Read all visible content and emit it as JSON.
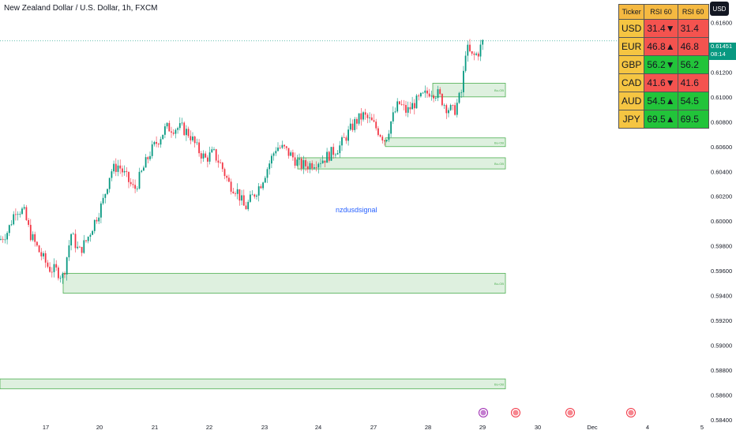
{
  "header": {
    "title": "New Zealand Dollar / U.S. Dollar, 1h, FXCM",
    "currency_button": "USD",
    "watermark": "nzdusdsignal"
  },
  "price_tag": {
    "price": "0.61451",
    "countdown": "08:14"
  },
  "colors": {
    "up": "#089981",
    "down": "#f23645",
    "zone_fill": "#c8e6c9",
    "zone_stroke": "#4caf50"
  },
  "rsi_table": {
    "headers": [
      "Ticker",
      "RSI 60",
      "RSI 60"
    ],
    "rows": [
      {
        "ticker": "USD",
        "rsi": "31.4▼",
        "value": "31.4",
        "status": "red"
      },
      {
        "ticker": "EUR",
        "rsi": "46.8▲",
        "value": "46.8",
        "status": "red"
      },
      {
        "ticker": "GBP",
        "rsi": "56.2▼",
        "value": "56.2",
        "status": "green"
      },
      {
        "ticker": "CAD",
        "rsi": "41.6▼",
        "value": "41.6",
        "status": "red"
      },
      {
        "ticker": "AUD",
        "rsi": "54.5▲",
        "value": "54.5",
        "status": "green"
      },
      {
        "ticker": "JPY",
        "rsi": "69.5▲",
        "value": "69.5",
        "status": "green"
      }
    ]
  },
  "chart_data": {
    "type": "candlestick",
    "x_ticks": [
      "17",
      "20",
      "21",
      "22",
      "23",
      "24",
      "27",
      "28",
      "29",
      "30",
      "Dec",
      "4",
      "5"
    ],
    "y_ticks": [
      "0.61600",
      "0.61200",
      "0.61000",
      "0.60800",
      "0.60600",
      "0.60400",
      "0.60200",
      "0.60000",
      "0.59800",
      "0.59600",
      "0.59400",
      "0.59200",
      "0.59000",
      "0.58800",
      "0.58600",
      "0.58400"
    ],
    "ylim": [
      0.5835,
      0.6178
    ],
    "last_price": 0.61451,
    "zones": [
      {
        "label": "Bu-OB",
        "low": 0.61,
        "high": 0.6111,
        "from_x": 548
      },
      {
        "label": "Bu-OB",
        "low": 0.606,
        "high": 0.6067,
        "from_x": 488
      },
      {
        "label": "Bu-OB",
        "low": 0.6042,
        "high": 0.6051,
        "from_x": 377
      },
      {
        "label": "Bu-OB",
        "low": 0.5942,
        "high": 0.5958,
        "from_x": 80
      },
      {
        "label": "Bu-OB",
        "low": 0.5865,
        "high": 0.5873,
        "from_x": 0
      }
    ],
    "path_anchors": [
      [
        0,
        0.5985
      ],
      [
        10,
        0.5992
      ],
      [
        20,
        0.601
      ],
      [
        30,
        0.6008
      ],
      [
        38,
        0.599
      ],
      [
        50,
        0.5975
      ],
      [
        62,
        0.5962
      ],
      [
        72,
        0.596
      ],
      [
        80,
        0.5955
      ],
      [
        90,
        0.599
      ],
      [
        100,
        0.5975
      ],
      [
        110,
        0.5985
      ],
      [
        120,
        0.6
      ],
      [
        130,
        0.6015
      ],
      [
        140,
        0.604
      ],
      [
        150,
        0.6045
      ],
      [
        160,
        0.6035
      ],
      [
        170,
        0.6025
      ],
      [
        180,
        0.604
      ],
      [
        190,
        0.6055
      ],
      [
        200,
        0.6065
      ],
      [
        210,
        0.6075
      ],
      [
        220,
        0.6075
      ],
      [
        230,
        0.6075
      ],
      [
        240,
        0.607
      ],
      [
        250,
        0.6058
      ],
      [
        260,
        0.605
      ],
      [
        270,
        0.6055
      ],
      [
        280,
        0.6045
      ],
      [
        290,
        0.603
      ],
      [
        300,
        0.6025
      ],
      [
        310,
        0.601
      ],
      [
        320,
        0.602
      ],
      [
        330,
        0.603
      ],
      [
        340,
        0.6045
      ],
      [
        350,
        0.606
      ],
      [
        360,
        0.6058
      ],
      [
        370,
        0.6052
      ],
      [
        380,
        0.6045
      ],
      [
        390,
        0.6045
      ],
      [
        400,
        0.6048
      ],
      [
        410,
        0.605
      ],
      [
        420,
        0.6055
      ],
      [
        430,
        0.606
      ],
      [
        440,
        0.607
      ],
      [
        450,
        0.608
      ],
      [
        460,
        0.6085
      ],
      [
        470,
        0.608
      ],
      [
        480,
        0.6072
      ],
      [
        488,
        0.6065
      ],
      [
        495,
        0.608
      ],
      [
        505,
        0.6095
      ],
      [
        515,
        0.6088
      ],
      [
        525,
        0.6095
      ],
      [
        535,
        0.61
      ],
      [
        545,
        0.6105
      ],
      [
        555,
        0.6102
      ],
      [
        565,
        0.6092
      ],
      [
        575,
        0.6088
      ],
      [
        585,
        0.6105
      ],
      [
        590,
        0.614
      ],
      [
        598,
        0.6132
      ],
      [
        605,
        0.6135
      ],
      [
        612,
        0.6145
      ]
    ]
  }
}
